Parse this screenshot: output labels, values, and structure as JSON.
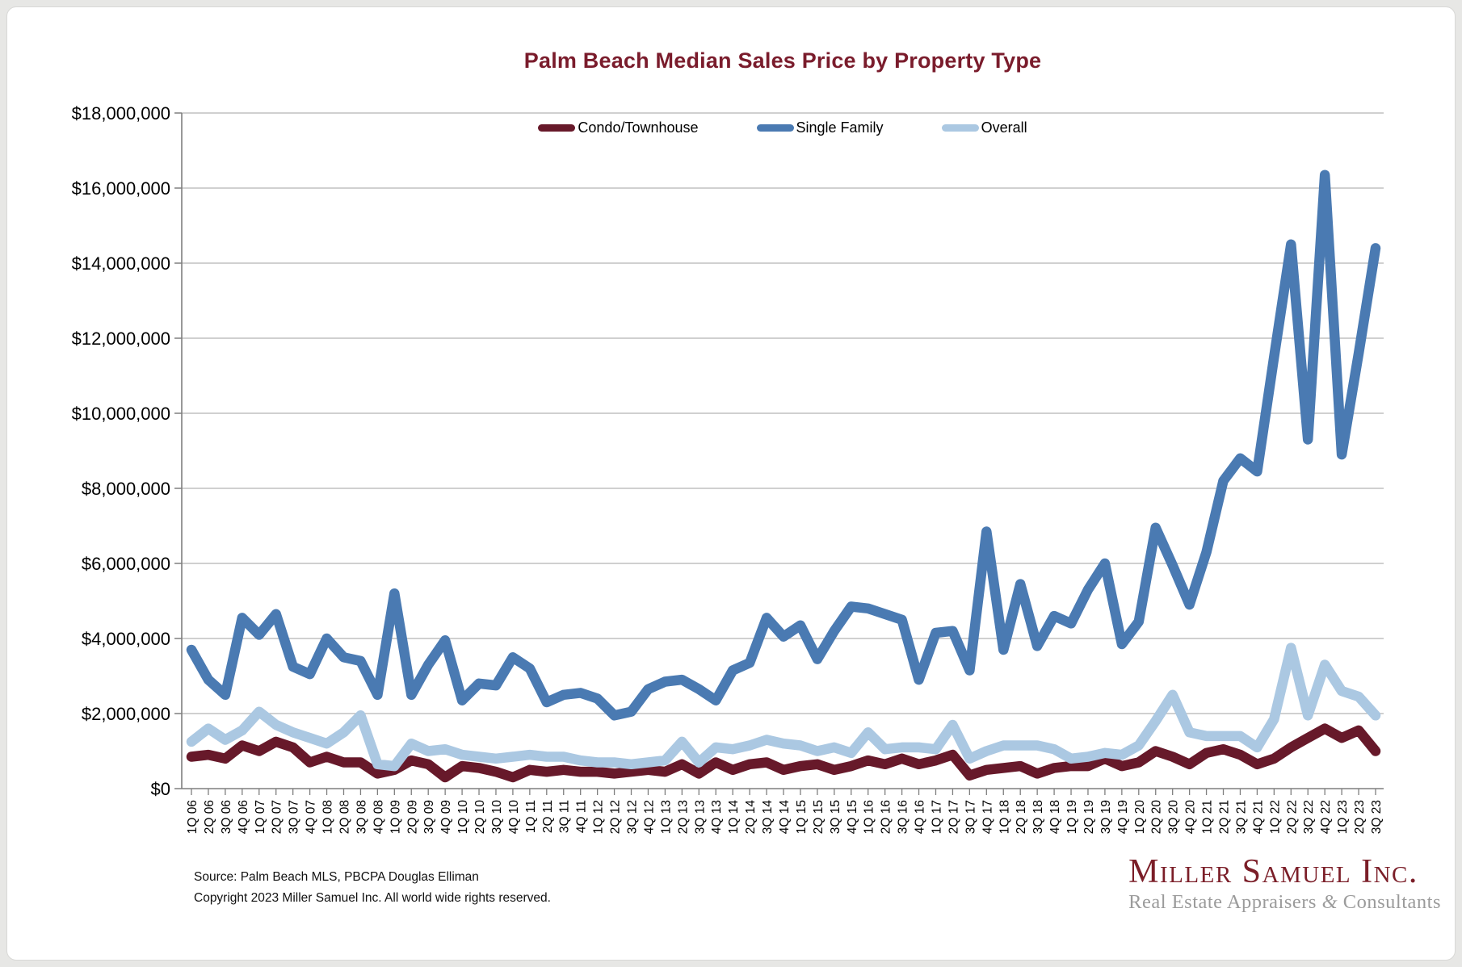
{
  "title": "Palm Beach Median Sales Price by Property Type",
  "legend": {
    "items": [
      {
        "label": "Condo/Townhouse",
        "color": "#67192a"
      },
      {
        "label": "Single Family",
        "color": "#4a7ab2"
      },
      {
        "label": "Overall",
        "color": "#abc8e2"
      }
    ]
  },
  "footer": {
    "source_line": "Source: Palm Beach MLS, PBCPA Douglas Elliman",
    "copyright_line": "Copyright 2023 Miller Samuel Inc.  All world wide rights reserved."
  },
  "logo": {
    "name": "Miller Samuel Inc.",
    "tagline_pre": "Real Estate Appraisers ",
    "tagline_amp": "&",
    "tagline_post": " Consultants"
  },
  "colors": {
    "title_maroon": "#7a1c2c",
    "condo": "#67192a",
    "single_family": "#4a7ab2",
    "overall": "#abc8e2",
    "gridline": "#b3b3b3",
    "axis": "#7f7f7f"
  },
  "chart_data": {
    "type": "line",
    "title": "Palm Beach Median Sales Price by Property Type",
    "unit": "million USD",
    "ylim_millions": [
      0,
      18
    ],
    "grid": "horizontal",
    "legend_position": "top-center",
    "y_tick_labels": [
      "$0",
      "$2,000,000",
      "$4,000,000",
      "$6,000,000",
      "$8,000,000",
      "$10,000,000",
      "$12,000,000",
      "$14,000,000",
      "$16,000,000",
      "$18,000,000"
    ],
    "x_labels": [
      "1Q 06",
      "2Q 06",
      "3Q 06",
      "4Q 06",
      "1Q 07",
      "2Q 07",
      "3Q 07",
      "4Q 07",
      "1Q 08",
      "2Q 08",
      "3Q 08",
      "4Q 08",
      "1Q 09",
      "2Q 09",
      "3Q 09",
      "4Q 09",
      "1Q 10",
      "2Q 10",
      "3Q 10",
      "4Q 10",
      "1Q 11",
      "2Q 11",
      "3Q 11",
      "4Q 11",
      "1Q 12",
      "2Q 12",
      "3Q 12",
      "4Q 12",
      "1Q 13",
      "2Q 13",
      "3Q 13",
      "4Q 13",
      "1Q 14",
      "2Q 14",
      "3Q 14",
      "4Q 14",
      "1Q 15",
      "2Q 15",
      "3Q 15",
      "4Q 15",
      "1Q 16",
      "2Q 16",
      "3Q 16",
      "4Q 16",
      "1Q 17",
      "2Q 17",
      "3Q 17",
      "4Q 17",
      "1Q 18",
      "2Q 18",
      "3Q 18",
      "4Q 18",
      "1Q 19",
      "2Q 19",
      "3Q 19",
      "4Q 19",
      "1Q 20",
      "2Q 20",
      "3Q 20",
      "4Q 20",
      "1Q 21",
      "2Q 21",
      "3Q 21",
      "4Q 21",
      "1Q 22",
      "2Q 22",
      "3Q 22",
      "4Q 22",
      "1Q 23",
      "2Q 23",
      "3Q 23"
    ],
    "series": [
      {
        "name": "Condo/Townhouse",
        "color": "#67192a",
        "values_millions": [
          0.85,
          0.9,
          0.8,
          1.15,
          1.0,
          1.25,
          1.1,
          0.7,
          0.85,
          0.7,
          0.7,
          0.4,
          0.5,
          0.75,
          0.65,
          0.3,
          0.6,
          0.55,
          0.45,
          0.3,
          0.5,
          0.45,
          0.5,
          0.45,
          0.45,
          0.4,
          0.45,
          0.5,
          0.45,
          0.65,
          0.4,
          0.7,
          0.5,
          0.65,
          0.7,
          0.5,
          0.6,
          0.65,
          0.5,
          0.6,
          0.75,
          0.65,
          0.8,
          0.65,
          0.75,
          0.9,
          0.35,
          0.5,
          0.55,
          0.6,
          0.4,
          0.55,
          0.6,
          0.6,
          0.8,
          0.6,
          0.7,
          1.0,
          0.85,
          0.65,
          0.95,
          1.05,
          0.9,
          0.65,
          0.8,
          1.1,
          1.35,
          1.6,
          1.35,
          1.55,
          1.0
        ]
      },
      {
        "name": "Single Family",
        "color": "#4a7ab2",
        "values_millions": [
          3.7,
          2.9,
          2.5,
          4.55,
          4.1,
          4.65,
          3.25,
          3.05,
          4.0,
          3.5,
          3.4,
          2.5,
          5.2,
          2.5,
          3.3,
          3.95,
          2.35,
          2.8,
          2.75,
          3.5,
          3.2,
          2.3,
          2.5,
          2.55,
          2.4,
          1.95,
          2.05,
          2.65,
          2.85,
          2.9,
          2.65,
          2.35,
          3.15,
          3.35,
          4.55,
          4.05,
          4.35,
          3.45,
          4.2,
          4.85,
          4.8,
          4.65,
          4.5,
          2.9,
          4.15,
          4.2,
          3.15,
          6.85,
          3.7,
          5.45,
          3.8,
          4.6,
          4.4,
          5.3,
          6.0,
          3.85,
          4.45,
          6.95,
          5.95,
          4.9,
          6.3,
          8.2,
          8.8,
          8.45,
          11.5,
          14.5,
          9.3,
          16.35,
          8.9,
          11.6,
          14.4
        ]
      },
      {
        "name": "Overall",
        "color": "#abc8e2",
        "values_millions": [
          1.25,
          1.6,
          1.3,
          1.55,
          2.05,
          1.7,
          1.5,
          1.35,
          1.2,
          1.5,
          1.95,
          0.65,
          0.6,
          1.2,
          1.0,
          1.05,
          0.9,
          0.85,
          0.8,
          0.85,
          0.9,
          0.85,
          0.85,
          0.75,
          0.7,
          0.7,
          0.65,
          0.7,
          0.75,
          1.25,
          0.7,
          1.1,
          1.05,
          1.15,
          1.3,
          1.2,
          1.15,
          1.0,
          1.1,
          0.95,
          1.5,
          1.05,
          1.1,
          1.1,
          1.05,
          1.7,
          0.8,
          1.0,
          1.15,
          1.15,
          1.15,
          1.05,
          0.8,
          0.85,
          0.95,
          0.9,
          1.15,
          1.8,
          2.5,
          1.5,
          1.4,
          1.4,
          1.4,
          1.1,
          1.85,
          3.75,
          1.95,
          3.3,
          2.6,
          2.45,
          1.95
        ]
      }
    ]
  }
}
